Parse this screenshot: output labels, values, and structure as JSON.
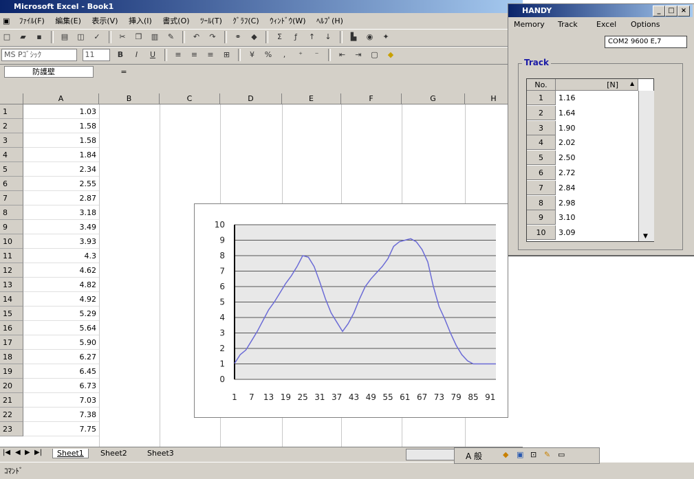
{
  "excel": {
    "title": "Microsoft Excel - Book1",
    "menu": [
      "ﾌｧｲﾙ(F)",
      "編集(E)",
      "表示(V)",
      "挿入(I)",
      "書式(O)",
      "ﾂｰﾙ(T)",
      "ｸﾞﾗﾌ(C)",
      "ｳｨﾝﾄﾞｳ(W)",
      "ﾍﾙﾌﾟ(H)"
    ],
    "font_name": "MS Pｺﾞｼｯｸ",
    "font_size": "11",
    "name_box": "防護壁",
    "formula_eq": "=",
    "columns": [
      "A",
      "B",
      "C",
      "D",
      "E",
      "F",
      "G",
      "H"
    ],
    "rows": [
      {
        "n": "1",
        "a": "1.03"
      },
      {
        "n": "2",
        "a": "1.58"
      },
      {
        "n": "3",
        "a": "1.58"
      },
      {
        "n": "4",
        "a": "1.84"
      },
      {
        "n": "5",
        "a": "2.34"
      },
      {
        "n": "6",
        "a": "2.55"
      },
      {
        "n": "7",
        "a": "2.87"
      },
      {
        "n": "8",
        "a": "3.18"
      },
      {
        "n": "9",
        "a": "3.49"
      },
      {
        "n": "10",
        "a": "3.93"
      },
      {
        "n": "11",
        "a": "4.3"
      },
      {
        "n": "12",
        "a": "4.62"
      },
      {
        "n": "13",
        "a": "4.82"
      },
      {
        "n": "14",
        "a": "4.92"
      },
      {
        "n": "15",
        "a": "5.29"
      },
      {
        "n": "16",
        "a": "5.64"
      },
      {
        "n": "17",
        "a": "5.90"
      },
      {
        "n": "18",
        "a": "6.27"
      },
      {
        "n": "19",
        "a": "6.45"
      },
      {
        "n": "20",
        "a": "6.73"
      },
      {
        "n": "21",
        "a": "7.03"
      },
      {
        "n": "22",
        "a": "7.38"
      },
      {
        "n": "23",
        "a": "7.75"
      }
    ],
    "sheet_tabs": [
      "Sheet1",
      "Sheet2",
      "Sheet3"
    ],
    "status": "ｺﾏﾝﾄﾞ",
    "ime_text": "A 般"
  },
  "chart_data": {
    "type": "line",
    "ylim": [
      0,
      10
    ],
    "yticks": [
      "0",
      "1",
      "2",
      "3",
      "4",
      "5",
      "6",
      "7",
      "8",
      "9",
      "10"
    ],
    "xtick_labels": [
      "1",
      "7",
      "13",
      "19",
      "25",
      "31",
      "37",
      "43",
      "49",
      "55",
      "61",
      "67",
      "73",
      "79",
      "85",
      "91"
    ],
    "series": [
      {
        "color": "#6b6bd6",
        "x": [
          1,
          3,
          5,
          7,
          9,
          11,
          13,
          15,
          17,
          19,
          21,
          23,
          25,
          27,
          29,
          31,
          33,
          35,
          37,
          39,
          41,
          43,
          45,
          47,
          49,
          51,
          53,
          55,
          57,
          59,
          61,
          63,
          65,
          67,
          69,
          71,
          73,
          75,
          77,
          79,
          81,
          83,
          85,
          87,
          89,
          91,
          93
        ],
        "values": [
          1.03,
          1.6,
          1.9,
          2.5,
          3.1,
          3.8,
          4.5,
          5.0,
          5.6,
          6.2,
          6.7,
          7.3,
          8.0,
          7.9,
          7.3,
          6.3,
          5.2,
          4.3,
          3.7,
          3.1,
          3.6,
          4.3,
          5.2,
          6.0,
          6.5,
          6.9,
          7.3,
          7.8,
          8.6,
          8.9,
          9.0,
          9.1,
          8.9,
          8.4,
          7.6,
          6.0,
          4.7,
          3.9,
          3.0,
          2.2,
          1.6,
          1.2,
          1.0,
          1.0,
          1.0,
          1.0,
          1.0
        ]
      }
    ]
  },
  "handy": {
    "title": "HANDY",
    "menu": [
      "Memory",
      "Track",
      "Excel",
      "Options"
    ],
    "com": "COM2 9600 E,7",
    "group": "Track",
    "col_no": "No.",
    "col_n": "[N]",
    "rows": [
      {
        "no": "1",
        "v": "1.16"
      },
      {
        "no": "2",
        "v": "1.64"
      },
      {
        "no": "3",
        "v": "1.90"
      },
      {
        "no": "4",
        "v": "2.02"
      },
      {
        "no": "5",
        "v": "2.50"
      },
      {
        "no": "6",
        "v": "2.72"
      },
      {
        "no": "7",
        "v": "2.84"
      },
      {
        "no": "8",
        "v": "2.98"
      },
      {
        "no": "9",
        "v": "3.10"
      },
      {
        "no": "10",
        "v": "3.09"
      }
    ]
  }
}
